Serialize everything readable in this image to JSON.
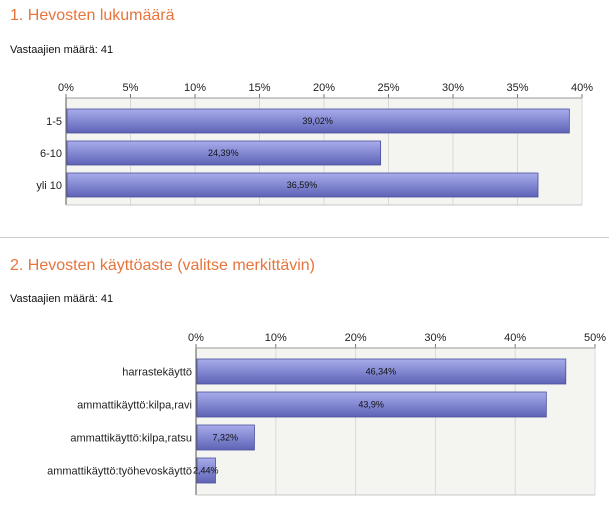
{
  "chart_data": [
    {
      "type": "bar",
      "orientation": "horizontal",
      "title": "1. Hevosten lukumäärä",
      "respondents": "Vastaajien määrä: 41",
      "categories": [
        "1-5",
        "6-10",
        "yli 10"
      ],
      "values": [
        39.02,
        24.39,
        36.59
      ],
      "value_labels": [
        "39,02%",
        "24,39%",
        "36,59%"
      ],
      "xlim": [
        0,
        40
      ],
      "ticks": [
        0,
        5,
        10,
        15,
        20,
        25,
        30,
        35,
        40
      ],
      "tick_labels": [
        "0%",
        "5%",
        "10%",
        "15%",
        "20%",
        "25%",
        "30%",
        "35%",
        "40%"
      ],
      "grid": true,
      "bar_color": "#7f84cf"
    },
    {
      "type": "bar",
      "orientation": "horizontal",
      "title": "2. Hevosten käyttöaste (valitse merkittävin)",
      "respondents": "Vastaajien määrä: 41",
      "categories": [
        "harrastekäyttö",
        "ammattikäyttö:kilpa,ravi",
        "ammattikäyttö:kilpa,ratsu",
        "ammattikäyttö:työhevoskäyttö"
      ],
      "values": [
        46.34,
        43.9,
        7.32,
        2.44
      ],
      "value_labels": [
        "46,34%",
        "43,9%",
        "7,32%",
        "2,44%"
      ],
      "xlim": [
        0,
        50
      ],
      "ticks": [
        0,
        10,
        20,
        30,
        40,
        50
      ],
      "tick_labels": [
        "0%",
        "10%",
        "20%",
        "30%",
        "40%",
        "50%"
      ],
      "grid": true,
      "bar_color": "#7f84cf"
    }
  ]
}
